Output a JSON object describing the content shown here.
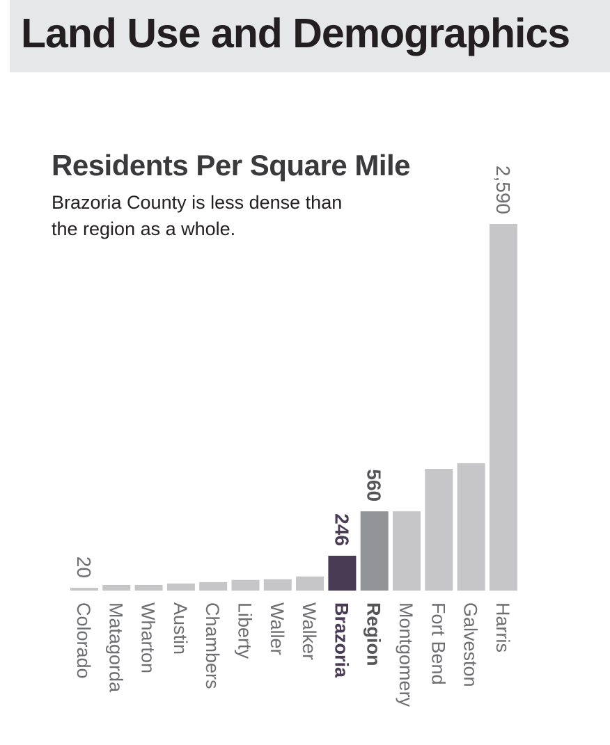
{
  "header": {
    "title": "Land Use and Demographics"
  },
  "chart_data": {
    "type": "bar",
    "title": "Residents Per Square Mile",
    "subtitle": "Brazoria County is less dense than the region as a whole.",
    "categories": [
      "Colorado",
      "Matagorda",
      "Wharton",
      "Austin",
      "Chambers",
      "Liberty",
      "Waller",
      "Walker",
      "Brazoria",
      "Region",
      "Montgomery",
      "Fort Bend",
      "Galveston",
      "Harris"
    ],
    "values": [
      20,
      40,
      40,
      50,
      60,
      75,
      80,
      100,
      246,
      560,
      560,
      860,
      900,
      2590
    ],
    "value_labels": [
      "20",
      "",
      "",
      "",
      "",
      "",
      "",
      "",
      "246",
      "560",
      "",
      "",
      "",
      "2,590"
    ],
    "highlight": {
      "Brazoria": "#4a3b55",
      "Region": "#929497"
    },
    "bar_color": "#c6c6c8",
    "highlight_label_colors": {
      "Brazoria": "#4a3b55",
      "Region": "#555557"
    },
    "default_label_color": "#6d6e71",
    "bold_categories": [
      "Brazoria",
      "Region"
    ],
    "ylim": [
      0,
      2590
    ],
    "grid": false,
    "legend": "none"
  }
}
